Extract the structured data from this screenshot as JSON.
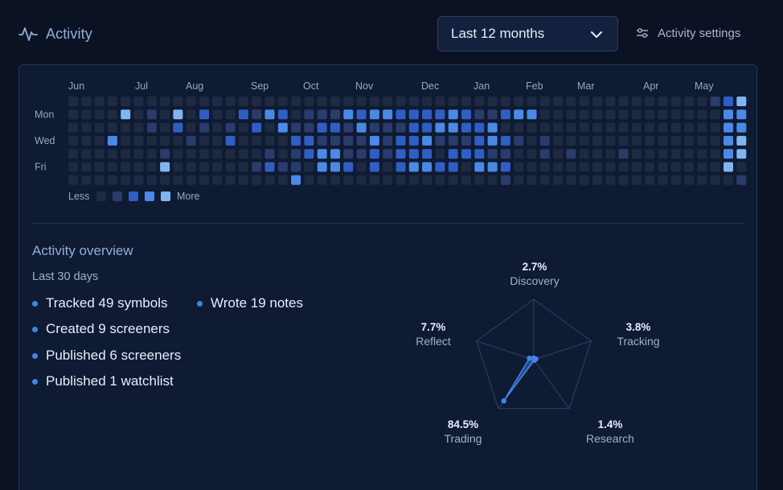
{
  "header": {
    "title": "Activity",
    "range_select": {
      "value": "Last 12 months"
    },
    "settings_label": "Activity settings"
  },
  "heatmap": {
    "months": [
      "Jun",
      "Jul",
      "Aug",
      "Sep",
      "Oct",
      "Nov",
      "Dec",
      "Jan",
      "Feb",
      "Mar",
      "Apr",
      "May"
    ],
    "day_labels": [
      "Mon",
      "Wed",
      "Fri"
    ],
    "legend": {
      "less": "Less",
      "more": "More"
    },
    "level_colors": [
      "#1e2942",
      "#2a3c6c",
      "#2f5fc4",
      "#4a8ae6",
      "#7fb6ef"
    ],
    "levels": [
      "0000000000000000000000000000000000000000000000000000",
      "0000000000000000000000000000000000000000000000000000",
      "0000000000000000000000000000000000000000000000000000",
      "0000000000000000000000000000000000000000000000000000",
      "0000000000000000000000000000000000000000000000000000",
      "0000000000000000000000000000000000000000000000000000",
      "0000000000000000000000000000000000000000000000000000",
      "0000000000000000000000000000000000000000000000000000",
      "0000000000000000000000000000000000000000000000000000",
      "0000000000000000000000000000000000000000000000000000",
      "0000000000000000000000000000000000000000000000000000",
      "0000000000000000000000000000000000000000000000000000",
      "0000000000000000000000000000000000000000000000000000",
      "0000000000000000000000000000000000000000000000000000",
      "0000000000000000000000000000000000000000000000000000",
      "0000000000000000000000000000000000000000000000000000",
      "0000000000000000000000000000000000000000000000000000",
      "0000000000000000000000000000000000000000000000000000",
      "0000000000000000000000000000000000000000000000000000",
      "0000000000000000000000000000000000000000000000000000",
      "0000000000000000000000000000000000000000000000000000",
      "0000000000000000000000000000000000000000000000000000",
      "0000000000000000000000000000000000000000000000000000",
      "0000000000000000000000000000000000000000000000000000",
      "0000000000000000000000000000000000000000000000000000",
      "0000000000000000000000000000000000000000000000000000"
    ],
    "rows": [
      "0000000000000000000000000000000000000000000000000124",
      "0000401040200213201113233222232112330000000000000033",
      "0000001020101020311221311122332230000000000000000033",
      "0003000001002000022111131223111232101000000000000034",
      "0000000100000001012331121222022211001010001000000034",
      "0000000400000012110332020233220332000000000000000040",
      "0000000000000000030000000000000001000000000000000001"
    ]
  },
  "overview": {
    "title": "Activity overview",
    "subtitle": "Last 30 days",
    "stats": [
      "Tracked 49 symbols",
      "Created 9 screeners",
      "Published 6 screeners",
      "Published 1 watchlist",
      "Wrote 19 notes"
    ]
  },
  "radar": {
    "axes": [
      {
        "name": "Discovery",
        "value": "2.7%",
        "fraction": 0.027
      },
      {
        "name": "Tracking",
        "value": "3.8%",
        "fraction": 0.038
      },
      {
        "name": "Research",
        "value": "1.4%",
        "fraction": 0.014
      },
      {
        "name": "Trading",
        "value": "84.5%",
        "fraction": 0.845
      },
      {
        "name": "Reflect",
        "value": "7.7%",
        "fraction": 0.077
      }
    ],
    "colors": {
      "grid": "#2c3d5e",
      "area": "#3f86e6"
    }
  }
}
